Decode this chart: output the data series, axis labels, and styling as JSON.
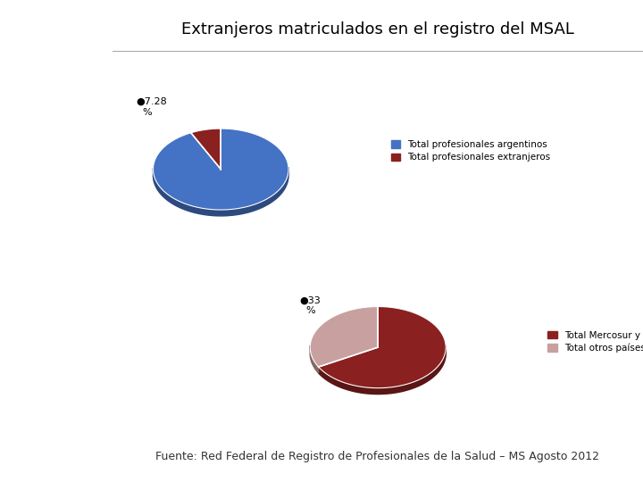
{
  "title": "Extranjeros matriculados en el registro del MSAL",
  "title_fontsize": 13,
  "pie1": {
    "values": [
      92.72,
      7.28
    ],
    "colors": [
      "#4472C4",
      "#8B2020"
    ],
    "labels": [
      "Total profesionales argentinos",
      "Total profesionales extranjeros"
    ]
  },
  "pie2": {
    "values": [
      67,
      33
    ],
    "colors": [
      "#8B2020",
      "#C9A0A0"
    ],
    "labels": [
      "Total Mercosur y asociados",
      "Total otros países"
    ]
  },
  "footer": "Fuente: Red Federal de Registro de Profesionales de la Salud – MS Agosto 2012",
  "footer_fontsize": 9,
  "bg_color": "#FFFFFF",
  "sidebar_color": "#C5D8F0"
}
